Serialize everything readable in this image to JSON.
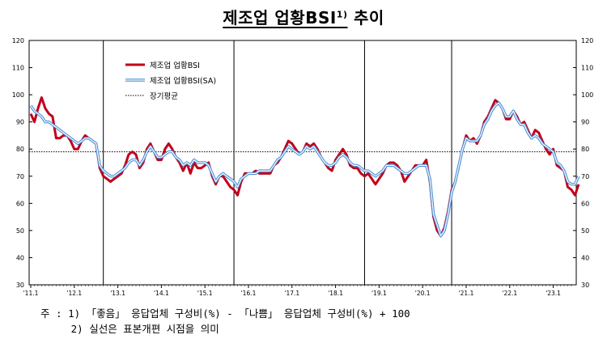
{
  "title": {
    "main": "제조업 업황BSI",
    "sup": "1)",
    "suffix": " 추이"
  },
  "footnotes": [
    "주 : 1) 「좋음」 응답업체 구성비(%) - 「나쁨」 응답업체 구성비(%) + 100",
    "     2) 실선은 표본개편 시점을 의미"
  ],
  "chart_data": {
    "type": "line",
    "title": "제조업 업황BSI 추이",
    "ylim": [
      30,
      120
    ],
    "yticks": [
      30,
      40,
      50,
      60,
      70,
      80,
      90,
      100,
      110,
      120
    ],
    "xtick_labels": [
      "'11.1",
      "'12.1",
      "'13.1",
      "'14.1",
      "'15.1",
      "'16.1",
      "'17.1",
      "'18.1",
      "'19.1",
      "'20.1",
      "'21.1",
      "'22.1",
      "'23.1"
    ],
    "x_start": "2011-01",
    "x_end": "2023-06",
    "legend": {
      "position": "top-left",
      "entries": [
        "제조업 업황BSI",
        "제조업 업황BSI(SA)",
        "장기평균"
      ]
    },
    "colors": {
      "raw": "#c0001b",
      "sa_outer": "#4a8fd6",
      "sa_inner": "#ffffff",
      "avg": "#000000"
    },
    "long_term_average": 79,
    "sample_revision_points": [
      "2012-09",
      "2015-09",
      "2018-09",
      "2020-09"
    ],
    "series": [
      {
        "name": "제조업 업황BSI",
        "values": [
          93,
          90,
          95,
          99,
          95,
          93,
          92,
          84,
          84,
          85,
          85,
          83,
          80,
          80,
          83,
          85,
          84,
          83,
          82,
          73,
          70,
          69,
          68,
          69,
          70,
          71,
          74,
          78,
          79,
          78,
          73,
          75,
          80,
          82,
          79,
          76,
          76,
          80,
          82,
          80,
          77,
          75,
          72,
          75,
          71,
          75,
          73,
          73,
          74,
          75,
          70,
          67,
          70,
          70,
          68,
          66,
          65,
          63,
          68,
          71,
          71,
          71,
          72,
          71,
          71,
          71,
          71,
          74,
          75,
          77,
          80,
          83,
          82,
          80,
          78,
          79,
          82,
          81,
          82,
          80,
          77,
          75,
          73,
          72,
          76,
          78,
          80,
          78,
          74,
          73,
          73,
          71,
          70,
          71,
          69,
          67,
          69,
          71,
          74,
          75,
          75,
          74,
          72,
          68,
          70,
          72,
          74,
          74,
          74,
          76,
          68,
          55,
          50,
          48,
          51,
          57,
          65,
          68,
          74,
          80,
          85,
          83,
          84,
          82,
          85,
          90,
          92,
          95,
          98,
          97,
          95,
          91,
          91,
          94,
          92,
          89,
          90,
          87,
          84,
          87,
          86,
          83,
          80,
          78,
          80,
          74,
          73,
          72,
          66,
          65,
          63,
          67
        ]
      },
      {
        "name": "제조업 업황BSI(SA)",
        "values": [
          96,
          94,
          93,
          92,
          90,
          90,
          89,
          88,
          87,
          86,
          85,
          84,
          83,
          82,
          83,
          84,
          84,
          83,
          82,
          74,
          72,
          71,
          70,
          70,
          71,
          72,
          73,
          75,
          76,
          76,
          74,
          76,
          79,
          81,
          79,
          77,
          77,
          78,
          79,
          79,
          77,
          76,
          74,
          75,
          74,
          76,
          75,
          75,
          75,
          74,
          71,
          68,
          70,
          71,
          70,
          69,
          68,
          66,
          69,
          70,
          71,
          71,
          71,
          72,
          72,
          72,
          72,
          74,
          76,
          77,
          79,
          81,
          80,
          79,
          78,
          79,
          81,
          80,
          81,
          79,
          77,
          75,
          74,
          74,
          75,
          77,
          78,
          77,
          75,
          74,
          74,
          73,
          72,
          72,
          71,
          70,
          71,
          72,
          74,
          74,
          74,
          73,
          72,
          71,
          71,
          72,
          73,
          74,
          74,
          74,
          69,
          56,
          52,
          48,
          50,
          56,
          64,
          68,
          74,
          80,
          84,
          83,
          83,
          83,
          85,
          89,
          91,
          94,
          96,
          97,
          95,
          92,
          92,
          94,
          91,
          89,
          89,
          86,
          84,
          85,
          84,
          82,
          81,
          80,
          79,
          75,
          74,
          72,
          68,
          67,
          67,
          70
        ]
      }
    ]
  }
}
